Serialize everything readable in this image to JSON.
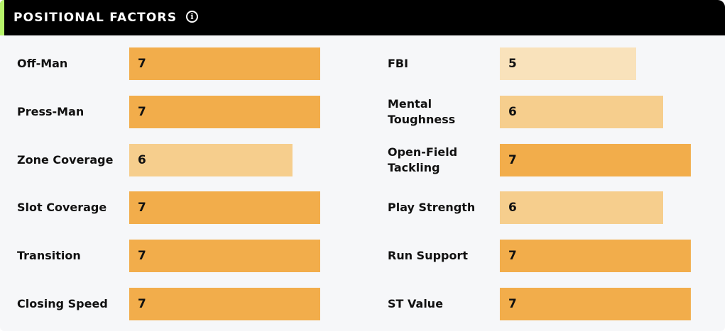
{
  "header": {
    "title": "POSITIONAL FACTORS",
    "info_icon": "info-icon",
    "accent_color": "#b6f36a"
  },
  "scale_max": 7,
  "colors": {
    "7": "#f2ad4b",
    "6": "#f6ce8d",
    "5": "#f9e2bb"
  },
  "left_factors": [
    {
      "label": "Off-Man",
      "value": 7
    },
    {
      "label": "Press-Man",
      "value": 7
    },
    {
      "label": "Zone Coverage",
      "value": 6
    },
    {
      "label": "Slot Coverage",
      "value": 7
    },
    {
      "label": "Transition",
      "value": 7
    },
    {
      "label": "Closing Speed",
      "value": 7
    }
  ],
  "right_factors": [
    {
      "label": "FBI",
      "value": 5
    },
    {
      "label": "Mental Toughness",
      "value": 6
    },
    {
      "label": "Open-Field Tackling",
      "value": 7
    },
    {
      "label": "Play Strength",
      "value": 6
    },
    {
      "label": "Run Support",
      "value": 7
    },
    {
      "label": "ST Value",
      "value": 7
    }
  ]
}
